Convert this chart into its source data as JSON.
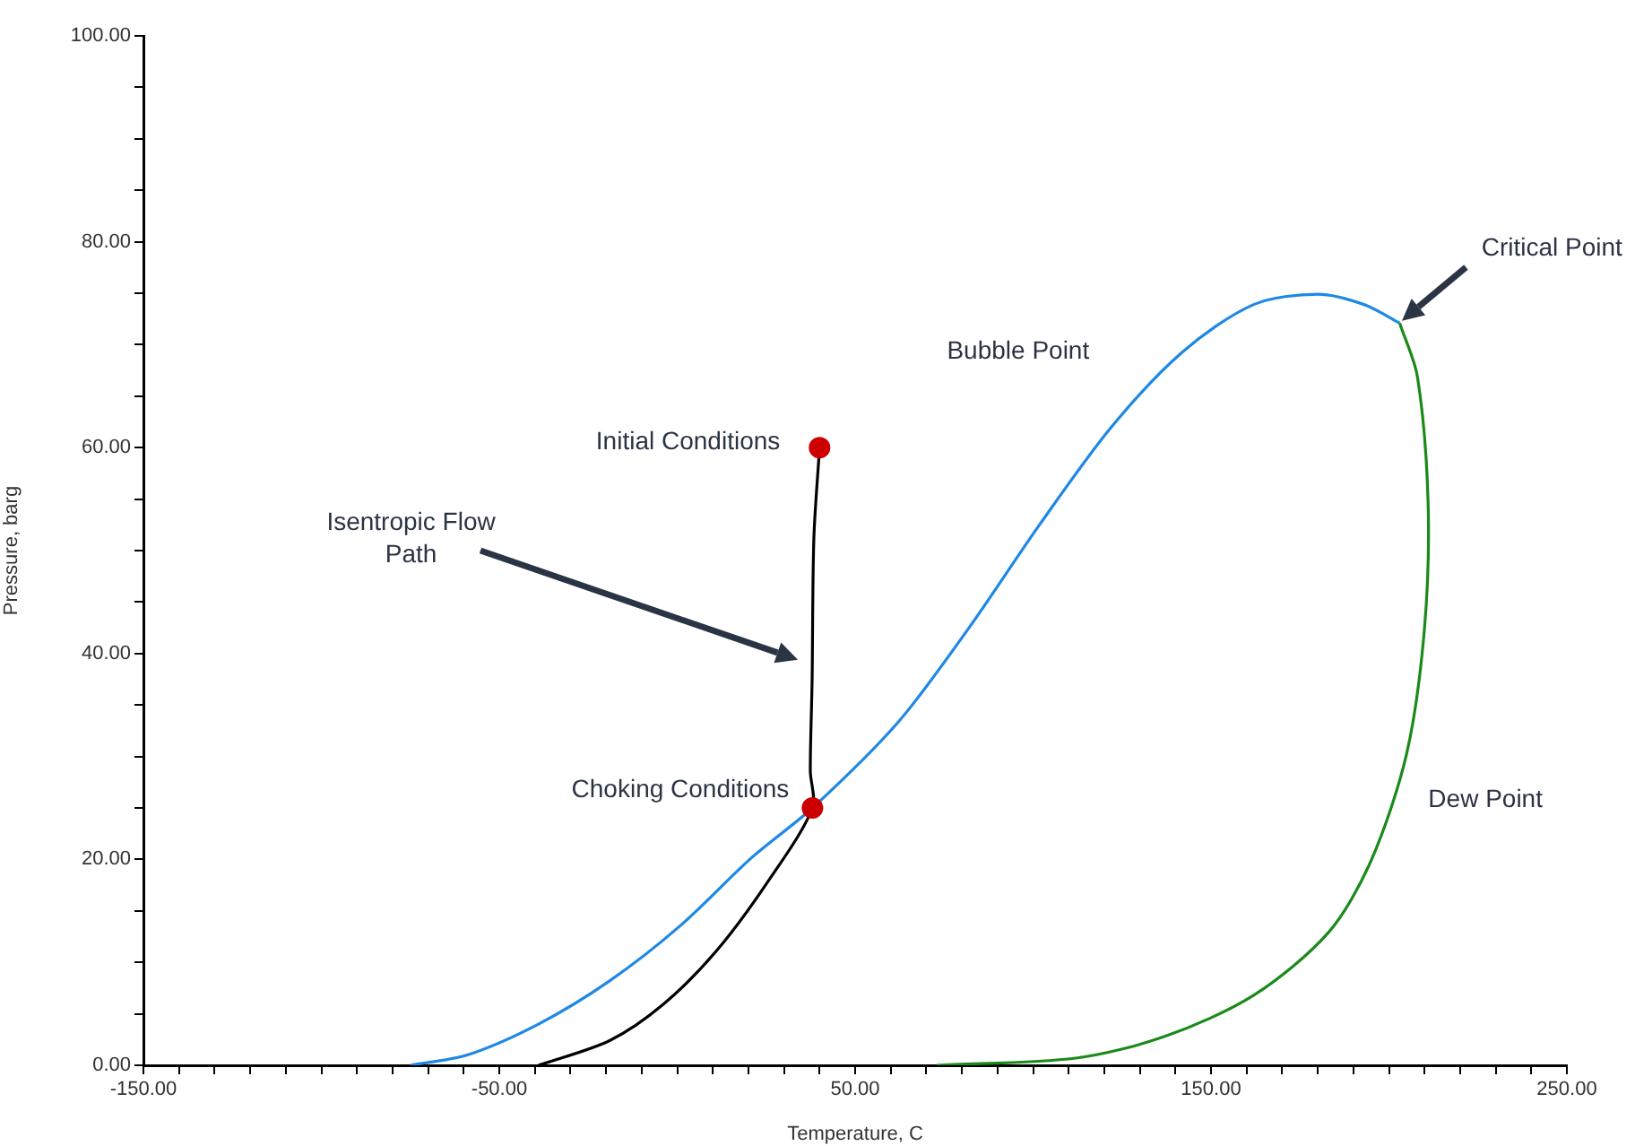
{
  "chart_data": {
    "type": "line",
    "xlabel": "Temperature, C",
    "ylabel": "Pressure, barg",
    "xlim": [
      -150,
      250
    ],
    "ylim": [
      0,
      100
    ],
    "xticks": [
      {
        "value": -150,
        "label": "-150.00"
      },
      {
        "value": -140,
        "label": null
      },
      {
        "value": -130,
        "label": null
      },
      {
        "value": -120,
        "label": null
      },
      {
        "value": -110,
        "label": null
      },
      {
        "value": -100,
        "label": null
      },
      {
        "value": -90,
        "label": null
      },
      {
        "value": -80,
        "label": null
      },
      {
        "value": -70,
        "label": null
      },
      {
        "value": -60,
        "label": null
      },
      {
        "value": -50,
        "label": "-50.00"
      },
      {
        "value": -40,
        "label": null
      },
      {
        "value": -30,
        "label": null
      },
      {
        "value": -20,
        "label": null
      },
      {
        "value": -10,
        "label": null
      },
      {
        "value": 0,
        "label": null
      },
      {
        "value": 10,
        "label": null
      },
      {
        "value": 20,
        "label": null
      },
      {
        "value": 30,
        "label": null
      },
      {
        "value": 40,
        "label": null
      },
      {
        "value": 50,
        "label": "50.00"
      },
      {
        "value": 60,
        "label": null
      },
      {
        "value": 70,
        "label": null
      },
      {
        "value": 80,
        "label": null
      },
      {
        "value": 90,
        "label": null
      },
      {
        "value": 100,
        "label": null
      },
      {
        "value": 110,
        "label": null
      },
      {
        "value": 120,
        "label": null
      },
      {
        "value": 130,
        "label": null
      },
      {
        "value": 140,
        "label": null
      },
      {
        "value": 150,
        "label": "150.00"
      },
      {
        "value": 160,
        "label": null
      },
      {
        "value": 170,
        "label": null
      },
      {
        "value": 180,
        "label": null
      },
      {
        "value": 190,
        "label": null
      },
      {
        "value": 200,
        "label": null
      },
      {
        "value": 210,
        "label": null
      },
      {
        "value": 220,
        "label": null
      },
      {
        "value": 230,
        "label": null
      },
      {
        "value": 240,
        "label": null
      },
      {
        "value": 250,
        "label": "250.00"
      }
    ],
    "yticks": [
      {
        "value": 0,
        "label": "0.00"
      },
      {
        "value": 5,
        "label": null
      },
      {
        "value": 10,
        "label": null
      },
      {
        "value": 15,
        "label": null
      },
      {
        "value": 20,
        "label": "20.00"
      },
      {
        "value": 25,
        "label": null
      },
      {
        "value": 30,
        "label": null
      },
      {
        "value": 35,
        "label": null
      },
      {
        "value": 40,
        "label": "40.00"
      },
      {
        "value": 45,
        "label": null
      },
      {
        "value": 50,
        "label": null
      },
      {
        "value": 55,
        "label": null
      },
      {
        "value": 60,
        "label": "60.00"
      },
      {
        "value": 65,
        "label": null
      },
      {
        "value": 70,
        "label": null
      },
      {
        "value": 75,
        "label": null
      },
      {
        "value": 80,
        "label": "80.00"
      },
      {
        "value": 85,
        "label": null
      },
      {
        "value": 90,
        "label": null
      },
      {
        "value": 95,
        "label": null
      },
      {
        "value": 100,
        "label": "100.00"
      }
    ],
    "grid": false,
    "legend": false,
    "marker": "none",
    "line_style": "solid",
    "series": [
      {
        "name": "Bubble Point",
        "color": "#1e88e5",
        "x": [
          -75,
          -59,
          -39,
          -19,
          1,
          21,
          38,
          62,
          82,
          102,
          122,
          142,
          162,
          180,
          193,
          203
        ],
        "values": [
          0,
          1,
          4,
          8.2,
          13.6,
          20.2,
          25,
          33.3,
          42.5,
          52.6,
          62,
          69.3,
          73.9,
          74.9,
          73.9,
          72.1
        ]
      },
      {
        "name": "Dew Point",
        "color": "#1a8a1a",
        "x": [
          203,
          208,
          211,
          210,
          205,
          195,
          183,
          162,
          137,
          112,
          73
        ],
        "values": [
          72.1,
          66.9,
          54.7,
          42.5,
          30.3,
          19.9,
          12.9,
          6.8,
          2.8,
          0.7,
          0
        ]
      },
      {
        "color": "#000000",
        "x": [
          40,
          38.4,
          37.9,
          37.4,
          38,
          26,
          11,
          -4,
          -19,
          -39
        ],
        "values": [
          60,
          51.2,
          37.3,
          28.6,
          25,
          18.1,
          11.1,
          5.9,
          2.4,
          0
        ]
      },
      {
        "type": "scatter",
        "marker": "circle",
        "color": "#cc0000",
        "x": [
          40,
          38
        ],
        "values": [
          60,
          25
        ]
      }
    ],
    "annotations": [
      {
        "text": "Initial Conditions",
        "x": 40,
        "y": 60
      },
      {
        "text": "Choking Conditions",
        "x": 38,
        "y": 25
      },
      "Critical Point",
      "Isentropic Flow Path"
    ]
  }
}
